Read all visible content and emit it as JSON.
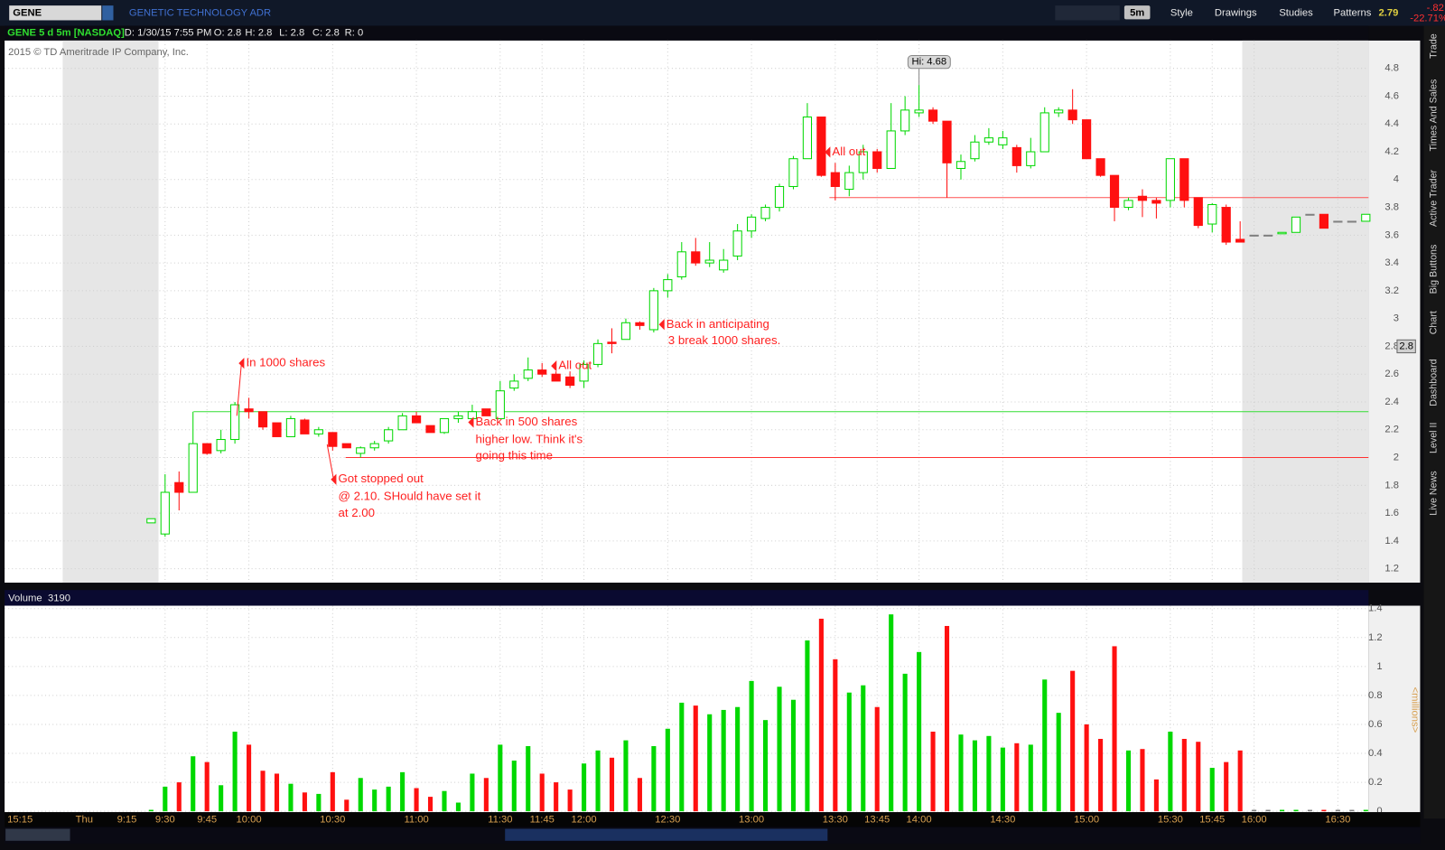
{
  "header": {
    "symbol": "GENE",
    "company": "GENETIC TECHNOLOGY ADR",
    "interval": "5m",
    "style": "Style",
    "drawings": "Drawings",
    "studies": "Studies",
    "patterns": "Patterns",
    "last": "2.79",
    "change": "-.82",
    "change_pct": "-22.71%"
  },
  "info_bar": {
    "title": "GENE 5 d 5m [NASDAQ]",
    "date": "D: 1/30/15 7:55 PM",
    "open": "O: 2.8",
    "high": "H: 2.8",
    "low": "L: 2.8",
    "close": "C: 2.8",
    "range": "R: 0"
  },
  "copyright": "2015 © TD Ameritrade IP Company, Inc.",
  "side_tabs": [
    "Trade",
    "Times And Sales",
    "Active Trader",
    "Big Buttons",
    "Chart",
    "Dashboard",
    "Level II",
    "Live News"
  ],
  "time_axis_extra": [
    "15:15",
    "Thu",
    "9:15"
  ],
  "chart_data": [
    {
      "type": "candlestick",
      "categories": [
        null,
        "9:30",
        null,
        null,
        "9:45",
        null,
        null,
        "10:00",
        null,
        null,
        null,
        null,
        null,
        "10:30",
        null,
        null,
        null,
        null,
        null,
        "11:00",
        null,
        null,
        null,
        null,
        null,
        "11:30",
        null,
        null,
        "11:45",
        null,
        null,
        "12:00",
        null,
        null,
        null,
        null,
        null,
        "12:30",
        null,
        null,
        null,
        null,
        null,
        "13:00",
        null,
        null,
        null,
        null,
        null,
        "13:30",
        null,
        null,
        "13:45",
        null,
        null,
        "14:00",
        null,
        null,
        null,
        null,
        null,
        "14:30",
        null,
        null,
        null,
        null,
        null,
        "15:00",
        null,
        null,
        null,
        null,
        null,
        "15:30",
        null,
        null,
        "15:45",
        null,
        null,
        "16:00",
        null,
        null,
        null,
        null,
        null,
        "16:30",
        null,
        null
      ],
      "open": [
        1.53,
        1.45,
        1.82,
        1.75,
        2.1,
        2.05,
        2.13,
        2.35,
        2.33,
        2.25,
        2.15,
        2.27,
        2.17,
        2.18,
        2.1,
        2.03,
        2.07,
        2.12,
        2.2,
        2.3,
        2.23,
        2.18,
        2.28,
        2.28,
        2.35,
        2.28,
        2.5,
        2.57,
        2.63,
        2.6,
        2.58,
        2.55,
        2.67,
        2.83,
        2.85,
        2.97,
        2.92,
        3.2,
        3.3,
        3.48,
        3.4,
        3.35,
        3.45,
        3.63,
        3.72,
        3.8,
        3.95,
        4.15,
        4.45,
        4.05,
        3.93,
        4.05,
        4.2,
        4.08,
        4.35,
        4.48,
        4.5,
        4.42,
        4.08,
        4.15,
        4.27,
        4.25,
        4.23,
        4.1,
        4.2,
        4.48,
        4.5,
        4.43,
        4.15,
        4.03,
        3.8,
        3.88,
        3.85,
        3.85,
        4.15,
        3.87,
        3.68,
        3.8,
        3.57,
        3.6,
        3.6,
        3.61,
        3.62,
        3.75,
        3.75,
        3.7,
        3.7,
        3.7
      ],
      "high": [
        1.56,
        1.88,
        1.9,
        2.33,
        2.1,
        2.2,
        2.4,
        2.43,
        2.33,
        2.25,
        2.3,
        2.28,
        2.22,
        2.18,
        2.1,
        2.08,
        2.12,
        2.22,
        2.32,
        2.33,
        2.23,
        2.28,
        2.33,
        2.38,
        2.35,
        2.55,
        2.6,
        2.72,
        2.68,
        2.62,
        2.62,
        2.7,
        2.85,
        2.93,
        3.0,
        2.98,
        3.22,
        3.32,
        3.55,
        3.58,
        3.55,
        3.5,
        3.68,
        3.75,
        3.82,
        3.97,
        4.17,
        4.55,
        4.45,
        4.12,
        4.1,
        4.25,
        4.22,
        4.55,
        4.6,
        4.68,
        4.52,
        4.42,
        4.18,
        4.32,
        4.37,
        4.35,
        4.25,
        4.3,
        4.52,
        4.52,
        4.65,
        4.43,
        4.15,
        4.03,
        3.87,
        3.93,
        3.87,
        4.15,
        4.15,
        3.87,
        3.83,
        3.82,
        3.7,
        3.6,
        3.6,
        3.62,
        3.73,
        3.75,
        3.75,
        3.7,
        3.7,
        3.75
      ],
      "low": [
        1.53,
        1.43,
        1.62,
        1.75,
        2.02,
        2.03,
        2.1,
        2.28,
        2.2,
        2.15,
        2.15,
        2.17,
        2.15,
        2.05,
        2.07,
        2.0,
        2.05,
        2.1,
        2.2,
        2.25,
        2.18,
        2.17,
        2.25,
        2.27,
        2.3,
        2.28,
        2.48,
        2.55,
        2.58,
        2.55,
        2.5,
        2.5,
        2.65,
        2.75,
        2.85,
        2.92,
        2.9,
        3.15,
        3.28,
        3.38,
        3.37,
        3.33,
        3.42,
        3.58,
        3.7,
        3.77,
        3.93,
        4.15,
        4.02,
        3.85,
        3.88,
        4.0,
        4.05,
        4.08,
        4.32,
        4.45,
        4.4,
        3.87,
        4.0,
        4.13,
        4.25,
        4.22,
        4.05,
        4.08,
        4.2,
        4.45,
        4.4,
        4.15,
        4.02,
        3.7,
        3.78,
        3.73,
        3.72,
        3.8,
        3.8,
        3.65,
        3.62,
        3.53,
        3.55,
        3.6,
        3.6,
        3.61,
        3.62,
        3.75,
        3.65,
        3.7,
        3.7,
        3.7
      ],
      "close": [
        1.56,
        1.75,
        1.75,
        2.1,
        2.03,
        2.13,
        2.38,
        2.33,
        2.22,
        2.15,
        2.28,
        2.17,
        2.2,
        2.08,
        2.07,
        2.07,
        2.1,
        2.2,
        2.3,
        2.25,
        2.18,
        2.28,
        2.3,
        2.33,
        2.3,
        2.48,
        2.55,
        2.63,
        2.6,
        2.55,
        2.52,
        2.67,
        2.82,
        2.82,
        2.97,
        2.95,
        3.2,
        3.28,
        3.48,
        3.4,
        3.42,
        3.42,
        3.63,
        3.73,
        3.8,
        3.95,
        4.15,
        4.45,
        4.03,
        3.95,
        4.05,
        4.2,
        4.08,
        4.35,
        4.5,
        4.5,
        4.42,
        4.12,
        4.13,
        4.27,
        4.3,
        4.3,
        4.1,
        4.2,
        4.48,
        4.5,
        4.43,
        4.15,
        4.03,
        3.8,
        3.85,
        3.85,
        3.83,
        4.15,
        3.85,
        3.67,
        3.82,
        3.55,
        3.55,
        3.6,
        3.6,
        3.62,
        3.73,
        3.75,
        3.65,
        3.7,
        3.7,
        3.75
      ],
      "up_color": "#00d800",
      "down_color": "#ff1010",
      "flat_color": "#808080",
      "ylim": [
        1.1,
        5.0
      ],
      "yticks": [
        1.2,
        1.4,
        1.6,
        1.8,
        2,
        2.2,
        2.4,
        2.6,
        2.8,
        3,
        3.2,
        3.4,
        3.6,
        3.8,
        4,
        4.2,
        4.4,
        4.6,
        4.8
      ],
      "grid": true,
      "hlines": [
        {
          "value": 2.33,
          "color": "#33dd33"
        },
        {
          "value": 2.0,
          "color": "#ff3030"
        },
        {
          "value": 3.87,
          "color": "#ff5050"
        }
      ],
      "high_label": "Hi: 4.68",
      "last_price": 2.8,
      "annotations": [
        "In 1000 shares",
        "Got stopped out",
        "@ 2.10. SHould have set it",
        "at 2.00",
        "Back in 500 shares",
        "higher low. Think it's",
        "going this time",
        "All out",
        "Back in anticipating",
        "3 break 1000 shares.",
        "All out"
      ]
    },
    {
      "type": "bar",
      "title": "Volume",
      "readout": "3190",
      "ylabel": "<millions>",
      "values": [
        0.01,
        0.17,
        0.2,
        0.38,
        0.34,
        0.18,
        0.55,
        0.46,
        0.28,
        0.26,
        0.19,
        0.13,
        0.12,
        0.27,
        0.08,
        0.23,
        0.15,
        0.17,
        0.27,
        0.16,
        0.1,
        0.14,
        0.06,
        0.26,
        0.23,
        0.46,
        0.35,
        0.45,
        0.26,
        0.2,
        0.15,
        0.33,
        0.42,
        0.37,
        0.49,
        0.23,
        0.45,
        0.57,
        0.75,
        0.73,
        0.67,
        0.7,
        0.72,
        0.9,
        0.63,
        0.86,
        0.77,
        1.18,
        1.33,
        1.05,
        0.82,
        0.87,
        0.72,
        1.36,
        0.95,
        1.1,
        0.55,
        1.28,
        0.53,
        0.49,
        0.52,
        0.44,
        0.47,
        0.46,
        0.91,
        0.68,
        0.97,
        0.6,
        0.5,
        1.14,
        0.42,
        0.43,
        0.22,
        0.55,
        0.5,
        0.48,
        0.3,
        0.34,
        0.42,
        0.01,
        0.01,
        0.01,
        0.01,
        0.01,
        0.01,
        0.01,
        0.01,
        0.01
      ],
      "ylim": [
        0,
        1.42
      ],
      "yticks": [
        0,
        0.2,
        0.4,
        0.6,
        0.8,
        1,
        1.2,
        1.4
      ],
      "grid": true
    }
  ]
}
